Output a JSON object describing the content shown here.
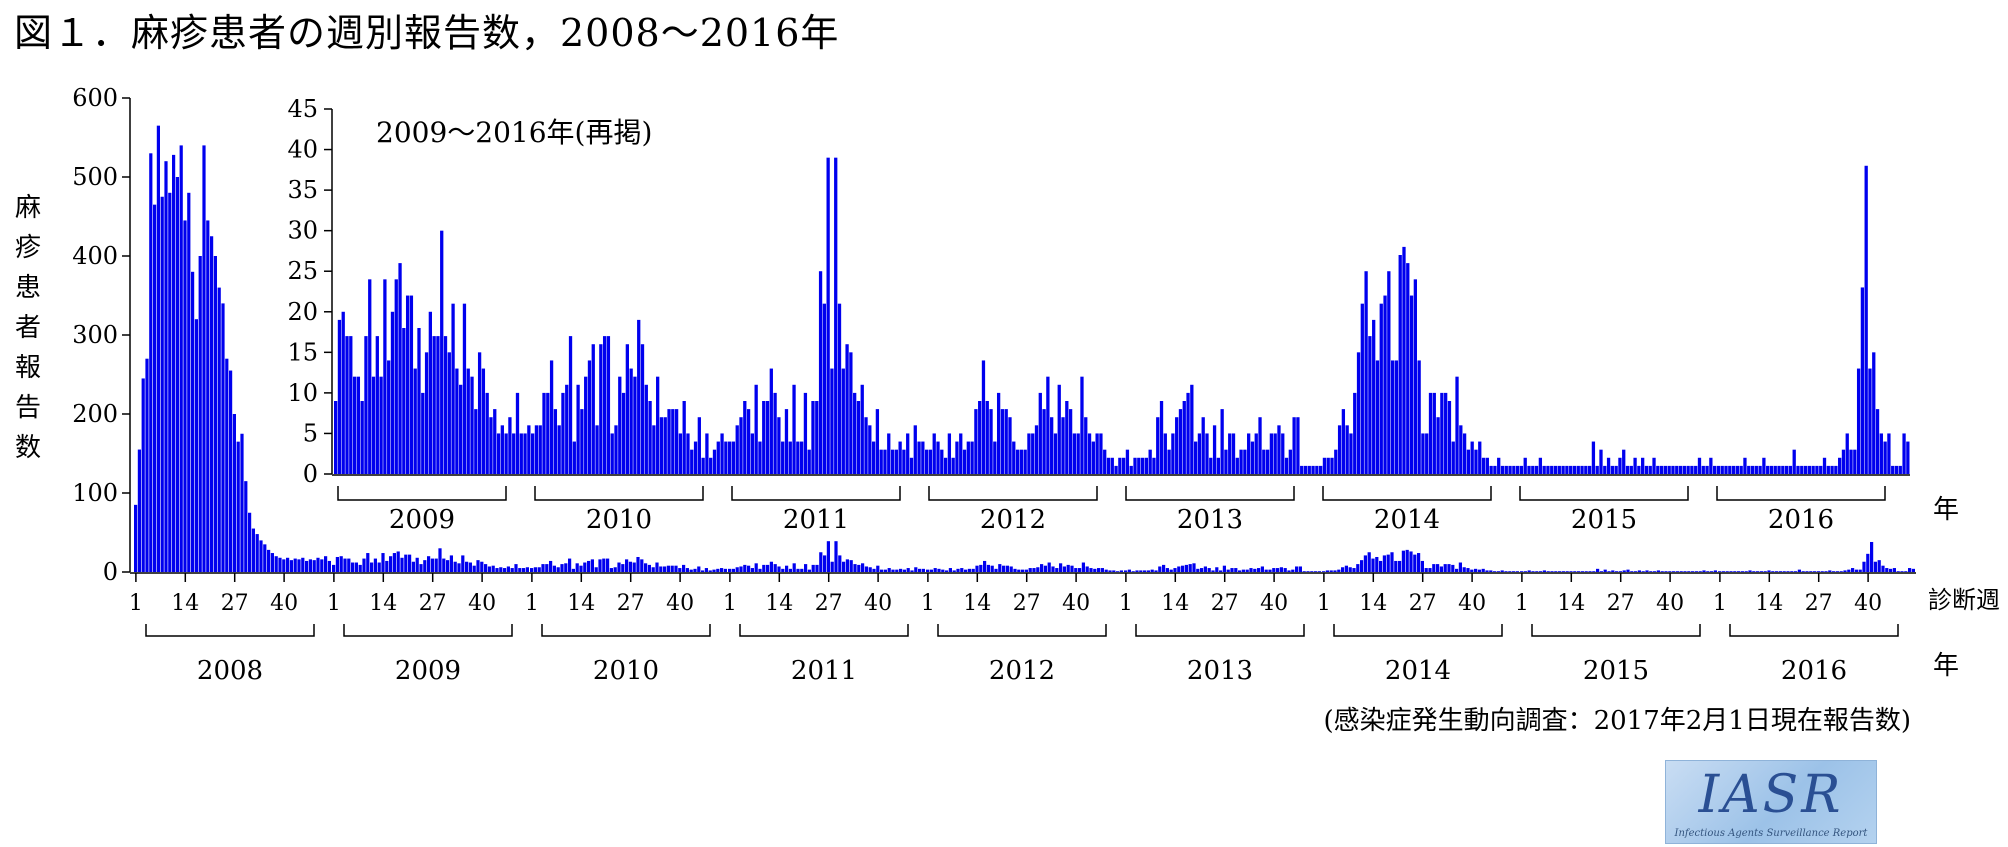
{
  "figure_title": "図１．麻疹患者の週別報告数，2008～2016年",
  "y_axis_label": "麻疹患者報告数",
  "source_note": "(感染症発生動向調査：2017年2月1日現在報告数)",
  "logo": {
    "text": "IASR",
    "subtitle": "Infectious Agents Surveillance Report"
  },
  "colors": {
    "bar": "#0000ee",
    "axis": "#000000",
    "background": "#ffffff"
  },
  "chart_data": [
    {
      "type": "bar",
      "title": "",
      "xlabel": "診断週",
      "x_group_label": "年",
      "ylabel": "麻疹患者報告数",
      "ylim": [
        0,
        600
      ],
      "yticks": [
        0,
        100,
        200,
        300,
        400,
        500,
        600
      ],
      "week_ticks": [
        1,
        14,
        27,
        40
      ],
      "years": [
        {
          "year": "2008",
          "values": [
            85,
            155,
            245,
            270,
            530,
            465,
            565,
            475,
            520,
            480,
            528,
            500,
            540,
            445,
            480,
            380,
            320,
            400,
            540,
            445,
            425,
            400,
            360,
            340,
            270,
            255,
            200,
            165,
            175,
            115,
            75,
            55,
            48,
            40,
            35,
            28,
            24,
            20,
            18,
            16,
            18,
            15,
            17,
            16,
            18,
            14,
            16,
            15,
            18,
            16,
            20,
            14
          ]
        },
        {
          "year": "2009",
          "values": [
            9,
            19,
            20,
            17,
            17,
            12,
            12,
            9,
            17,
            24,
            12,
            17,
            12,
            24,
            14,
            20,
            24,
            26,
            18,
            22,
            22,
            13,
            18,
            10,
            15,
            20,
            17,
            17,
            30,
            17,
            15,
            21,
            13,
            11,
            21,
            13,
            12,
            8,
            15,
            13,
            10,
            7,
            8,
            5,
            6,
            5,
            7,
            5,
            10,
            5,
            5,
            6
          ]
        },
        {
          "year": "2010",
          "values": [
            5,
            6,
            6,
            10,
            10,
            14,
            8,
            6,
            10,
            11,
            17,
            4,
            11,
            8,
            12,
            14,
            16,
            6,
            16,
            17,
            17,
            5,
            6,
            12,
            10,
            16,
            13,
            12,
            19,
            16,
            11,
            9,
            6,
            12,
            7,
            7,
            8,
            8,
            8,
            5,
            9,
            5,
            3,
            4,
            7,
            2,
            5,
            2,
            3,
            4,
            5,
            4
          ]
        },
        {
          "year": "2011",
          "values": [
            4,
            4,
            6,
            7,
            9,
            8,
            5,
            11,
            4,
            9,
            9,
            13,
            10,
            7,
            4,
            8,
            4,
            11,
            4,
            4,
            10,
            3,
            9,
            9,
            25,
            21,
            39,
            13,
            39,
            21,
            13,
            16,
            15,
            10,
            9,
            11,
            7,
            6,
            4,
            8,
            3,
            3,
            5,
            3,
            3,
            4,
            3,
            5,
            2,
            6,
            4,
            4
          ]
        },
        {
          "year": "2012",
          "values": [
            3,
            3,
            5,
            4,
            3,
            2,
            5,
            2,
            4,
            5,
            3,
            4,
            4,
            8,
            9,
            14,
            9,
            8,
            4,
            10,
            8,
            8,
            7,
            4,
            3,
            3,
            3,
            5,
            5,
            6,
            10,
            8,
            12,
            7,
            5,
            11,
            7,
            9,
            8,
            5,
            5,
            12,
            7,
            5,
            4,
            5,
            5,
            3,
            2,
            2,
            1,
            2
          ]
        },
        {
          "year": "2013",
          "values": [
            2,
            3,
            1,
            2,
            2,
            2,
            2,
            3,
            2,
            7,
            9,
            5,
            3,
            5,
            7,
            8,
            9,
            10,
            11,
            4,
            5,
            7,
            5,
            2,
            6,
            2,
            8,
            3,
            5,
            5,
            2,
            3,
            3,
            5,
            4,
            5,
            7,
            3,
            3,
            5,
            5,
            6,
            5,
            2,
            3,
            7,
            7,
            1,
            1,
            1,
            1,
            1
          ]
        },
        {
          "year": "2014",
          "values": [
            1,
            2,
            2,
            2,
            3,
            6,
            8,
            6,
            5,
            10,
            15,
            21,
            25,
            17,
            19,
            14,
            21,
            22,
            25,
            14,
            14,
            27,
            28,
            26,
            22,
            24,
            14,
            5,
            5,
            10,
            10,
            7,
            10,
            10,
            9,
            4,
            12,
            6,
            5,
            3,
            4,
            3,
            4,
            2,
            2,
            1,
            1,
            2,
            1,
            1,
            1,
            1
          ]
        },
        {
          "year": "2015",
          "values": [
            1,
            1,
            2,
            1,
            1,
            1,
            2,
            1,
            1,
            1,
            1,
            1,
            1,
            1,
            1,
            1,
            1,
            1,
            1,
            1,
            4,
            1,
            3,
            1,
            2,
            1,
            1,
            2,
            3,
            1,
            1,
            2,
            1,
            2,
            1,
            1,
            2,
            1,
            1,
            1,
            1,
            1,
            1,
            1,
            1,
            1,
            1,
            1,
            2,
            1,
            1,
            2
          ]
        },
        {
          "year": "2016",
          "values": [
            1,
            1,
            1,
            1,
            1,
            1,
            1,
            1,
            2,
            1,
            1,
            1,
            1,
            2,
            1,
            1,
            1,
            1,
            1,
            1,
            1,
            3,
            1,
            1,
            1,
            1,
            1,
            1,
            1,
            2,
            1,
            1,
            1,
            2,
            3,
            5,
            3,
            3,
            13,
            23,
            38,
            13,
            15,
            8,
            5,
            4,
            5,
            1,
            1,
            1,
            5,
            4
          ]
        }
      ]
    },
    {
      "type": "bar",
      "title": "2009～2016年(再掲)",
      "xlabel": "",
      "x_group_label": "年",
      "ylabel": "",
      "ylim": [
        0,
        45
      ],
      "yticks": [
        0,
        5,
        10,
        15,
        20,
        25,
        30,
        35,
        40,
        45
      ],
      "series_source": "same weekly values as the main chart for 2009–2016"
    }
  ]
}
